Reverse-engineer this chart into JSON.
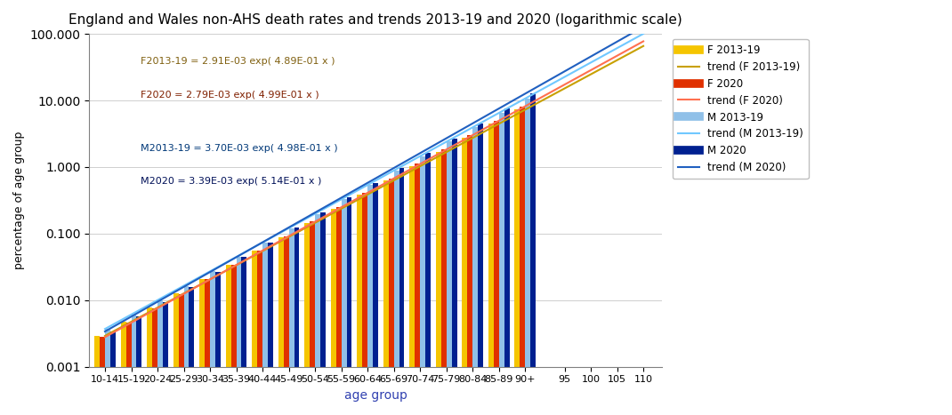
{
  "title": "England and Wales non-AHS death rates and trends 2013-19 and 2020 (logarithmic scale)",
  "xlabel": "age group",
  "ylabel": "percentage of age group",
  "age_groups": [
    "10-14",
    "15-19",
    "20-24",
    "25-29",
    "30-34",
    "35-39",
    "40-44",
    "45-49",
    "50-54",
    "55-59",
    "60-64",
    "65-69",
    "70-74",
    "75-79",
    "80-84",
    "85-89",
    "90+"
  ],
  "x_tick_labels_bars": [
    "10-14",
    "15-19",
    "20-24",
    "25-29",
    "30-34",
    "35-39",
    "40-44",
    "45-49",
    "50-54",
    "55-59",
    "60-64",
    "65-69",
    "70-74",
    "75-79",
    "80-84",
    "85-89",
    "90+"
  ],
  "x_tick_labels_extra": [
    "95",
    "100",
    "105",
    "110"
  ],
  "F2013_19_A": 0.00291,
  "F2013_19_b": 0.489,
  "F2020_A": 0.00279,
  "F2020_b": 0.499,
  "M2013_19_A": 0.0037,
  "M2013_19_b": 0.498,
  "M2020_A": 0.00339,
  "M2020_b": 0.514,
  "color_F2013_19": "#F5C500",
  "color_F2020": "#E03000",
  "color_M2013_19": "#90C0E8",
  "color_M2020": "#002090",
  "eq_F2013_19": "F2013-19 = 2.91E-03 exp( 4.89E-01 x )",
  "eq_F2020": "F2020 = 2.79E-03 exp( 4.99E-01 x )",
  "eq_M2013_19": "M2013-19 = 3.70E-03 exp( 4.98E-01 x )",
  "eq_M2020": "M2020 = 3.39E-03 exp( 5.14E-01 x )",
  "trend_color_F2013_19": "#C8A000",
  "trend_color_F2020": "#FF7050",
  "trend_color_M2013_19": "#70C8FF",
  "trend_color_M2020": "#2060C0",
  "eq_text_color_F2013_19": "#806010",
  "eq_text_color_F2020": "#802000",
  "eq_text_color_M2013_19": "#003878",
  "eq_text_color_M2020": "#001058",
  "ylim_min": 0.001,
  "ylim_max": 100.0,
  "bar_width": 0.2
}
